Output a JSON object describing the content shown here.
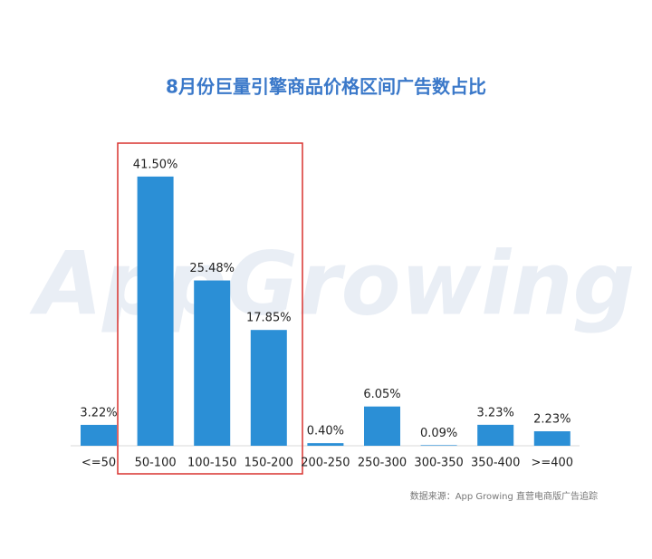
{
  "chart_data": {
    "type": "bar",
    "title": "8月份巨量引擎商品价格区间广告数占比",
    "watermark": "AppGrowing",
    "source": "数据来源：App Growing 直营电商版广告追踪",
    "categories": [
      "<=50",
      "50-100",
      "100-150",
      "150-200",
      "200-250",
      "250-300",
      "300-350",
      "350-400",
      ">=400"
    ],
    "values": [
      3.22,
      41.5,
      25.48,
      17.85,
      0.4,
      6.05,
      0.09,
      3.23,
      2.23
    ],
    "value_labels": [
      "3.22%",
      "41.50%",
      "25.48%",
      "17.85%",
      "0.40%",
      "6.05%",
      "0.09%",
      "3.23%",
      "2.23%"
    ],
    "color": "#2b8fd6"
  }
}
